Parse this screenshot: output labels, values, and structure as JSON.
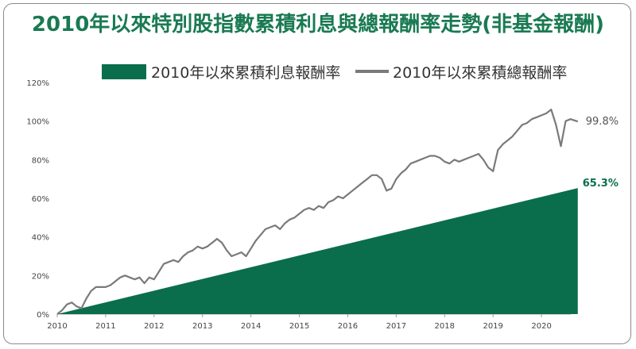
{
  "title": "2010年以來特別股指數累積利息與總報酬率走勢(非基金報酬)",
  "chart_data": {
    "type": "area",
    "title": "2010年以來特別股指數累積利息與總報酬率走勢(非基金報酬)",
    "xlabel": "",
    "ylabel": "",
    "x_ticks": [
      "2010",
      "2011",
      "2012",
      "2013",
      "2014",
      "2015",
      "2016",
      "2017",
      "2018",
      "2019",
      "2020"
    ],
    "y_ticks": [
      "0%",
      "20%",
      "40%",
      "60%",
      "80%",
      "100%",
      "120%"
    ],
    "ylim": [
      0,
      120
    ],
    "xlim": [
      2010.0,
      2021.0
    ],
    "legend_position": "top",
    "series": [
      {
        "name": "2010年以來累積利息報酬率",
        "kind": "area",
        "color": "#0a6e4c",
        "x": [
          2010.0,
          2020.75
        ],
        "y": [
          0,
          65.3
        ],
        "end_label": "65.3%"
      },
      {
        "name": "2010年以來累積總報酬率",
        "kind": "line",
        "color": "#7a7a7a",
        "x": [
          2010.0,
          2010.1,
          2010.2,
          2010.3,
          2010.4,
          2010.5,
          2010.6,
          2010.7,
          2010.8,
          2010.9,
          2011.0,
          2011.1,
          2011.2,
          2011.3,
          2011.4,
          2011.5,
          2011.6,
          2011.7,
          2011.8,
          2011.9,
          2012.0,
          2012.1,
          2012.2,
          2012.3,
          2012.4,
          2012.5,
          2012.6,
          2012.7,
          2012.8,
          2012.9,
          2013.0,
          2013.1,
          2013.2,
          2013.3,
          2013.4,
          2013.5,
          2013.6,
          2013.7,
          2013.8,
          2013.9,
          2014.0,
          2014.1,
          2014.2,
          2014.3,
          2014.4,
          2014.5,
          2014.6,
          2014.7,
          2014.8,
          2014.9,
          2015.0,
          2015.1,
          2015.2,
          2015.3,
          2015.4,
          2015.5,
          2015.6,
          2015.7,
          2015.8,
          2015.9,
          2016.0,
          2016.1,
          2016.2,
          2016.3,
          2016.4,
          2016.5,
          2016.6,
          2016.7,
          2016.8,
          2016.9,
          2017.0,
          2017.1,
          2017.2,
          2017.3,
          2017.4,
          2017.5,
          2017.6,
          2017.7,
          2017.8,
          2017.9,
          2018.0,
          2018.1,
          2018.2,
          2018.3,
          2018.4,
          2018.5,
          2018.6,
          2018.7,
          2018.8,
          2018.9,
          2019.0,
          2019.1,
          2019.2,
          2019.3,
          2019.4,
          2019.5,
          2019.6,
          2019.7,
          2019.8,
          2019.9,
          2020.0,
          2020.1,
          2020.2,
          2020.3,
          2020.4,
          2020.5,
          2020.6,
          2020.75
        ],
        "y": [
          0,
          2,
          5,
          6,
          4,
          3,
          8,
          12,
          14,
          14,
          14,
          15,
          17,
          19,
          20,
          19,
          18,
          19,
          16,
          19,
          18,
          22,
          26,
          27,
          28,
          27,
          30,
          32,
          33,
          35,
          34,
          35,
          37,
          39,
          37,
          33,
          30,
          31,
          32,
          30,
          34,
          38,
          41,
          44,
          45,
          46,
          44,
          47,
          49,
          50,
          52,
          54,
          55,
          54,
          56,
          55,
          58,
          59,
          61,
          60,
          62,
          64,
          66,
          68,
          70,
          72,
          72,
          70,
          64,
          65,
          70,
          73,
          75,
          78,
          79,
          80,
          81,
          82,
          82,
          81,
          79,
          78,
          80,
          79,
          80,
          81,
          82,
          83,
          80,
          76,
          74,
          85,
          88,
          90,
          92,
          95,
          98,
          99,
          101,
          102,
          103,
          104,
          106,
          98,
          87,
          100,
          101,
          99.8
        ],
        "end_label": "99.8%"
      }
    ]
  }
}
